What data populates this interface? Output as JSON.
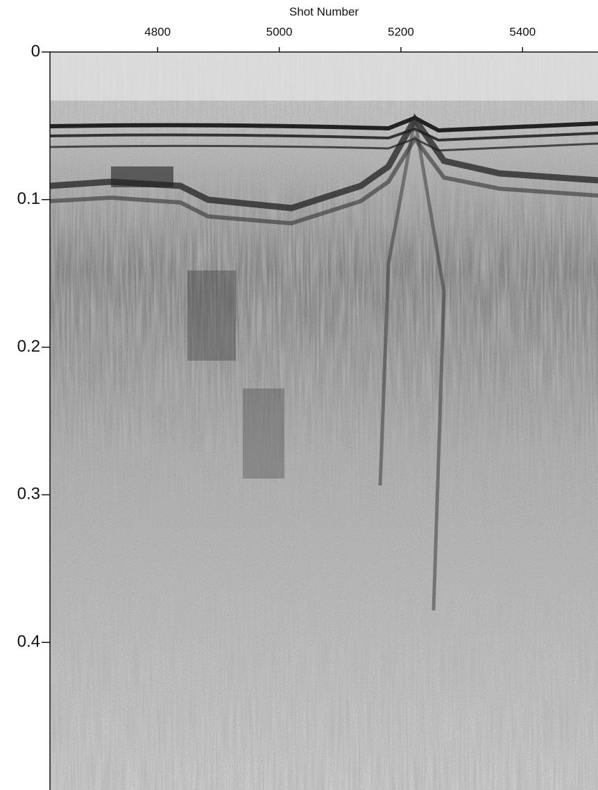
{
  "chart_data": {
    "type": "seismic",
    "xlabel": "Shot Number",
    "xlim": [
      4623,
      5524
    ],
    "xticks": [
      4800,
      5000,
      5200,
      5400
    ],
    "ylim": [
      0,
      0.5
    ],
    "yticks": [
      0,
      0.1,
      0.2,
      0.3,
      0.4
    ],
    "y_inverted": true
  }
}
